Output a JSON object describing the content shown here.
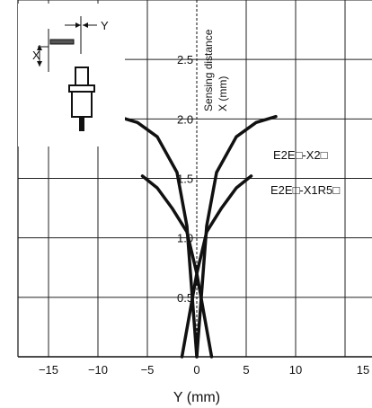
{
  "chart_data": {
    "type": "line",
    "xlabel": "Y (mm)",
    "ylabel_line1": "Sensing distance",
    "ylabel_line2": "X (mm)",
    "xlim": [
      -15,
      15
    ],
    "ylim": [
      0,
      3
    ],
    "x_ticks": [
      "−15",
      "−10",
      "−5",
      "0",
      "5",
      "10",
      "15"
    ],
    "y_ticks": [
      "0.5",
      "1.0",
      "1.5",
      "2.0",
      "2.5"
    ],
    "grid": true,
    "inset_labels": {
      "x": "X",
      "y": "Y"
    },
    "series": [
      {
        "name": "E2E□-X2□",
        "left": {
          "x": [
            -8,
            -6,
            -4,
            -2,
            -1,
            0
          ],
          "y": [
            2.02,
            1.97,
            1.85,
            1.55,
            1.1,
            0.0
          ]
        },
        "right": {
          "x": [
            0,
            1,
            2,
            4,
            6,
            8
          ],
          "y": [
            0.0,
            1.1,
            1.55,
            1.85,
            1.97,
            2.02
          ]
        }
      },
      {
        "name": "E2E□-X1R5□",
        "left": {
          "x": [
            -5.5,
            -4,
            -2.5,
            -1,
            0,
            1.5
          ],
          "y": [
            1.52,
            1.42,
            1.25,
            1.05,
            0.7,
            0.0
          ]
        },
        "right": {
          "x": [
            -1.5,
            0,
            1,
            2.5,
            4,
            5.5
          ],
          "y": [
            0.0,
            0.7,
            1.05,
            1.25,
            1.42,
            1.52
          ]
        }
      }
    ]
  }
}
